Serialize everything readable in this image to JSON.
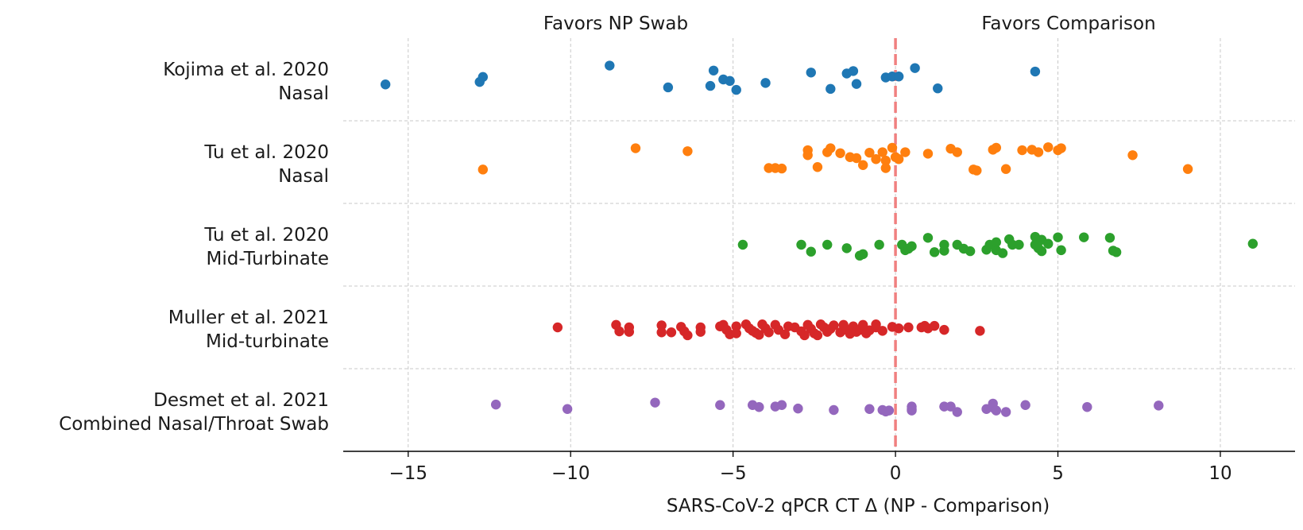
{
  "chart_data": {
    "type": "scatter",
    "xlabel": "SARS-CoV-2 qPCR CT Δ (NP - Comparison)",
    "xlim": [
      -17,
      12.3
    ],
    "xticks": [
      -15,
      -10,
      -5,
      0,
      5,
      10
    ],
    "xtick_labels": [
      "−15",
      "−10",
      "−5",
      "0",
      "5",
      "10"
    ],
    "reference_line_x": 0,
    "reference_line_color": "#f08080",
    "grid": true,
    "annotations": {
      "left": "Favors NP Swab",
      "right": "Favors Comparison"
    },
    "series": [
      {
        "label_line1": "Kojima et al. 2020",
        "label_line2": "Nasal",
        "color": "#1f77b4",
        "points": [
          [
            -15.7,
            -0.1
          ],
          [
            -12.8,
            -0.05
          ],
          [
            -12.7,
            0.05
          ],
          [
            -8.8,
            0.28
          ],
          [
            -7.0,
            -0.16
          ],
          [
            -5.6,
            0.18
          ],
          [
            -5.3,
            0.0
          ],
          [
            -5.1,
            -0.03
          ],
          [
            -4.9,
            -0.21
          ],
          [
            -5.7,
            -0.13
          ],
          [
            -4.0,
            -0.07
          ],
          [
            -2.6,
            0.14
          ],
          [
            -2.0,
            -0.19
          ],
          [
            -1.5,
            0.12
          ],
          [
            -1.3,
            0.17
          ],
          [
            -1.2,
            -0.09
          ],
          [
            -0.3,
            0.04
          ],
          [
            -0.1,
            0.06
          ],
          [
            0.1,
            0.06
          ],
          [
            0.6,
            0.23
          ],
          [
            1.3,
            -0.18
          ],
          [
            4.3,
            0.16
          ]
        ]
      },
      {
        "label_line1": "Tu et al. 2020",
        "label_line2": "Nasal",
        "color": "#ff7f0e",
        "points": [
          [
            -12.7,
            -0.15
          ],
          [
            -8.0,
            0.28
          ],
          [
            -6.4,
            0.22
          ],
          [
            -3.9,
            -0.12
          ],
          [
            -3.7,
            -0.12
          ],
          [
            -3.5,
            -0.13
          ],
          [
            -2.7,
            0.24
          ],
          [
            -2.7,
            0.14
          ],
          [
            -2.4,
            -0.1
          ],
          [
            -2.1,
            0.2
          ],
          [
            -2.0,
            0.28
          ],
          [
            -1.7,
            0.18
          ],
          [
            -1.4,
            0.1
          ],
          [
            -1.2,
            0.08
          ],
          [
            -1.0,
            -0.06
          ],
          [
            -0.8,
            0.19
          ],
          [
            -0.6,
            0.06
          ],
          [
            -0.4,
            0.2
          ],
          [
            -0.3,
            0.03
          ],
          [
            -0.3,
            -0.12
          ],
          [
            -0.1,
            0.29
          ],
          [
            0.0,
            0.1
          ],
          [
            0.1,
            0.06
          ],
          [
            0.3,
            0.2
          ],
          [
            1.0,
            0.17
          ],
          [
            1.7,
            0.27
          ],
          [
            1.9,
            0.2
          ],
          [
            2.4,
            -0.15
          ],
          [
            2.5,
            -0.17
          ],
          [
            3.0,
            0.25
          ],
          [
            3.1,
            0.29
          ],
          [
            3.4,
            -0.14
          ],
          [
            3.9,
            0.24
          ],
          [
            4.2,
            0.25
          ],
          [
            4.4,
            0.2
          ],
          [
            4.7,
            0.3
          ],
          [
            5.0,
            0.24
          ],
          [
            5.1,
            0.28
          ],
          [
            7.3,
            0.14
          ],
          [
            9.0,
            -0.14
          ]
        ]
      },
      {
        "label_line1": "Tu et al. 2020",
        "label_line2": "Mid-Turbinate",
        "color": "#2ca02c",
        "points": [
          [
            -4.7,
            0.0
          ],
          [
            -2.9,
            0.0
          ],
          [
            -2.6,
            -0.14
          ],
          [
            -2.1,
            0.0
          ],
          [
            -1.5,
            -0.07
          ],
          [
            -1.1,
            -0.22
          ],
          [
            -1.0,
            -0.19
          ],
          [
            -0.5,
            0.0
          ],
          [
            0.2,
            0.0
          ],
          [
            0.3,
            -0.11
          ],
          [
            0.4,
            -0.08
          ],
          [
            0.5,
            -0.03
          ],
          [
            1.0,
            0.14
          ],
          [
            1.2,
            -0.15
          ],
          [
            1.5,
            0.0
          ],
          [
            1.5,
            -0.12
          ],
          [
            1.9,
            0.0
          ],
          [
            2.1,
            -0.08
          ],
          [
            2.3,
            -0.13
          ],
          [
            2.8,
            -0.1
          ],
          [
            2.9,
            0.0
          ],
          [
            3.1,
            -0.11
          ],
          [
            3.1,
            0.05
          ],
          [
            3.3,
            -0.17
          ],
          [
            3.5,
            0.11
          ],
          [
            3.6,
            0.0
          ],
          [
            3.8,
            0.0
          ],
          [
            4.3,
            0.16
          ],
          [
            4.3,
            0.0
          ],
          [
            4.4,
            -0.07
          ],
          [
            4.5,
            -0.13
          ],
          [
            4.5,
            0.1
          ],
          [
            4.7,
            0.02
          ],
          [
            5.0,
            0.15
          ],
          [
            5.1,
            -0.11
          ],
          [
            5.8,
            0.15
          ],
          [
            6.6,
            0.14
          ],
          [
            6.7,
            -0.12
          ],
          [
            6.8,
            -0.15
          ],
          [
            11.0,
            0.02
          ]
        ]
      },
      {
        "label_line1": "Muller et al. 2021",
        "label_line2": "Mid-turbinate",
        "color": "#d62728",
        "points": [
          [
            -10.4,
            0.0
          ],
          [
            -8.6,
            0.05
          ],
          [
            -8.5,
            -0.08
          ],
          [
            -8.2,
            0.0
          ],
          [
            -8.2,
            -0.09
          ],
          [
            -7.2,
            0.04
          ],
          [
            -7.2,
            -0.1
          ],
          [
            -6.9,
            -0.1
          ],
          [
            -6.6,
            0.01
          ],
          [
            -6.5,
            -0.08
          ],
          [
            -6.4,
            -0.16
          ],
          [
            -6.0,
            0.0
          ],
          [
            -6.0,
            -0.09
          ],
          [
            -5.4,
            0.02
          ],
          [
            -5.3,
            0.05
          ],
          [
            -5.2,
            -0.05
          ],
          [
            -5.1,
            -0.14
          ],
          [
            -4.9,
            0.02
          ],
          [
            -4.9,
            -0.12
          ],
          [
            -4.6,
            0.06
          ],
          [
            -4.5,
            -0.02
          ],
          [
            -4.4,
            -0.07
          ],
          [
            -4.3,
            -0.11
          ],
          [
            -4.2,
            -0.15
          ],
          [
            -4.1,
            0.06
          ],
          [
            -4.0,
            -0.02
          ],
          [
            -3.9,
            -0.1
          ],
          [
            -3.7,
            0.05
          ],
          [
            -3.6,
            -0.05
          ],
          [
            -3.4,
            -0.14
          ],
          [
            -3.3,
            0.02
          ],
          [
            -3.1,
            0.0
          ],
          [
            -2.9,
            -0.08
          ],
          [
            -2.8,
            -0.16
          ],
          [
            -2.7,
            0.05
          ],
          [
            -2.6,
            -0.03
          ],
          [
            -2.5,
            -0.12
          ],
          [
            -2.4,
            -0.16
          ],
          [
            -2.3,
            0.06
          ],
          [
            -2.2,
            0.0
          ],
          [
            -2.1,
            -0.09
          ],
          [
            -2.0,
            -0.03
          ],
          [
            -1.9,
            0.04
          ],
          [
            -1.7,
            -0.1
          ],
          [
            -1.6,
            0.05
          ],
          [
            -1.5,
            -0.05
          ],
          [
            -1.4,
            -0.13
          ],
          [
            -1.3,
            0.02
          ],
          [
            -1.2,
            -0.09
          ],
          [
            -1.1,
            -0.05
          ],
          [
            -1.0,
            0.05
          ],
          [
            -0.9,
            -0.12
          ],
          [
            -0.8,
            -0.06
          ],
          [
            -0.6,
            0.0
          ],
          [
            -0.6,
            0.06
          ],
          [
            -0.4,
            -0.07
          ],
          [
            -0.1,
            0.01
          ],
          [
            0.1,
            -0.02
          ],
          [
            0.4,
            0.0
          ],
          [
            0.8,
            0.0
          ],
          [
            0.9,
            0.03
          ],
          [
            1.0,
            -0.02
          ],
          [
            1.2,
            0.03
          ],
          [
            1.5,
            -0.05
          ],
          [
            2.6,
            -0.07
          ]
        ]
      },
      {
        "label_line1": "Desmet et al. 2021",
        "label_line2": "Combined Nasal/Throat Swab",
        "color": "#9467bd",
        "points": [
          [
            -12.3,
            0.11
          ],
          [
            -10.1,
            0.02
          ],
          [
            -7.4,
            0.15
          ],
          [
            -5.4,
            0.1
          ],
          [
            -4.4,
            0.1
          ],
          [
            -4.2,
            0.06
          ],
          [
            -3.7,
            0.07
          ],
          [
            -3.5,
            0.1
          ],
          [
            -3.0,
            0.03
          ],
          [
            -1.9,
            0.0
          ],
          [
            -0.8,
            0.02
          ],
          [
            -0.4,
            0.0
          ],
          [
            -0.3,
            -0.03
          ],
          [
            -0.2,
            -0.01
          ],
          [
            0.5,
            0.07
          ],
          [
            0.5,
            -0.01
          ],
          [
            0.5,
            0.02
          ],
          [
            1.5,
            0.07
          ],
          [
            1.7,
            0.07
          ],
          [
            1.9,
            -0.04
          ],
          [
            2.8,
            0.02
          ],
          [
            3.0,
            0.13
          ],
          [
            3.0,
            0.05
          ],
          [
            3.1,
            -0.01
          ],
          [
            3.4,
            -0.04
          ],
          [
            4.0,
            0.1
          ],
          [
            5.9,
            0.06
          ],
          [
            8.1,
            0.09
          ]
        ]
      }
    ]
  }
}
